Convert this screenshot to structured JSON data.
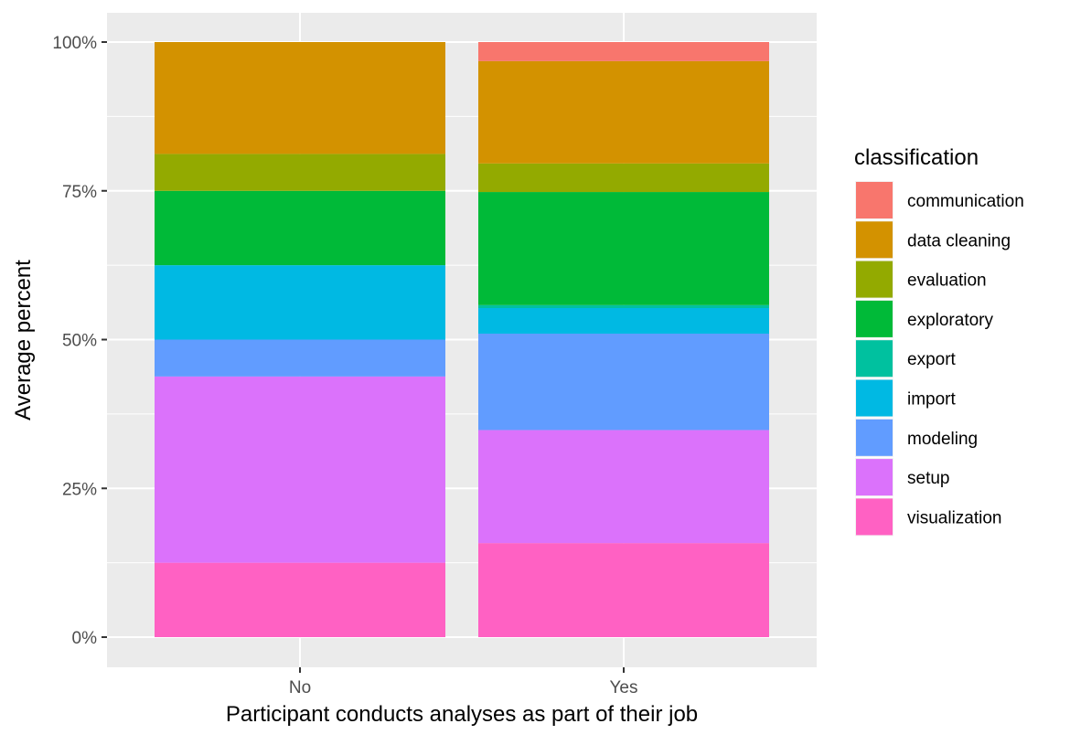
{
  "chart_data": {
    "type": "bar",
    "stacked": true,
    "normalized": true,
    "xlabel": "Participant conducts analyses as part of their job",
    "ylabel": "Average percent",
    "ylim": [
      0,
      1
    ],
    "y_ticks": [
      {
        "value": 0,
        "label": "0%"
      },
      {
        "value": 0.25,
        "label": "25%"
      },
      {
        "value": 0.5,
        "label": "50%"
      },
      {
        "value": 0.75,
        "label": "75%"
      },
      {
        "value": 1,
        "label": "100%"
      }
    ],
    "categories": [
      "No",
      "Yes"
    ],
    "legend_title": "classification",
    "legend_position": "right",
    "grid": true,
    "series": [
      {
        "name": "communication",
        "color": "#F8766D",
        "values": [
          0.0,
          0.032
        ]
      },
      {
        "name": "data cleaning",
        "color": "#D39200",
        "values": [
          0.188,
          0.172
        ]
      },
      {
        "name": "evaluation",
        "color": "#93AA00",
        "values": [
          0.062,
          0.048
        ]
      },
      {
        "name": "exploratory",
        "color": "#00BA38",
        "values": [
          0.125,
          0.19
        ]
      },
      {
        "name": "export",
        "color": "#00C19F",
        "values": [
          0.0,
          0.005
        ]
      },
      {
        "name": "import",
        "color": "#00B9E3",
        "values": [
          0.125,
          0.043
        ]
      },
      {
        "name": "modeling",
        "color": "#619CFF",
        "values": [
          0.062,
          0.162
        ]
      },
      {
        "name": "setup",
        "color": "#DB72FB",
        "values": [
          0.313,
          0.19
        ]
      },
      {
        "name": "visualization",
        "color": "#FF61C3",
        "values": [
          0.125,
          0.158
        ]
      }
    ]
  }
}
